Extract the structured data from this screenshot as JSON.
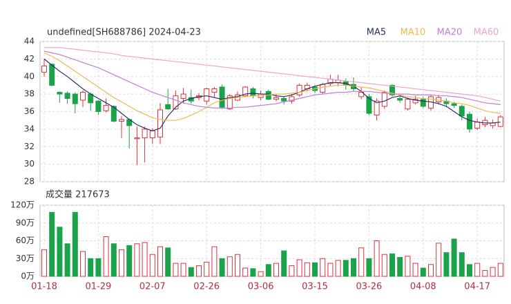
{
  "chart_data": {
    "type": "candlestick",
    "title": "undefined[SH688786] 2024-04-23",
    "categories": [
      "01-18",
      null,
      null,
      null,
      null,
      null,
      null,
      "01-29",
      null,
      null,
      null,
      null,
      null,
      null,
      "02-07",
      null,
      null,
      null,
      null,
      null,
      null,
      "02-26",
      null,
      null,
      null,
      null,
      null,
      null,
      "03-06",
      null,
      null,
      null,
      null,
      null,
      null,
      "03-15",
      null,
      null,
      null,
      null,
      null,
      null,
      "03-26",
      null,
      null,
      null,
      null,
      null,
      null,
      "04-08",
      null,
      null,
      null,
      null,
      null,
      null,
      "04-17",
      null,
      null,
      null
    ],
    "open": [
      40.5,
      41.4,
      38.2,
      38.1,
      38.0,
      37.3,
      38.0,
      37.2,
      36.1,
      36.6,
      34.9,
      35.1,
      32.9,
      33.0,
      33.0,
      33.1,
      36.8,
      36.3,
      37.5,
      37.6,
      37.6,
      37.2,
      38.2,
      38.8,
      36.3,
      37.3,
      37.8,
      38.6,
      37.6,
      38.3,
      37.4,
      37.5,
      37.2,
      37.9,
      38.6,
      38.8,
      38.2,
      39.2,
      39.3,
      39.4,
      39.1,
      37.7,
      37.7,
      35.6,
      36.6,
      39.0,
      37.5,
      36.3,
      37.0,
      37.4,
      36.4,
      37.1,
      37.2,
      36.9,
      36.6,
      35.7,
      34.1,
      34.5,
      34.4,
      34.3
    ],
    "high": [
      42.0,
      41.5,
      38.3,
      38.3,
      38.2,
      38.4,
      38.2,
      37.3,
      37.5,
      36.7,
      35.5,
      35.2,
      34.3,
      34.3,
      34.1,
      37.0,
      38.6,
      38.4,
      38.7,
      38.5,
      38.1,
      38.7,
      38.8,
      39.1,
      38.0,
      38.3,
      38.9,
      38.8,
      38.4,
      38.5,
      38.0,
      37.7,
      38.0,
      39.2,
      39.3,
      39.0,
      39.3,
      40.2,
      40.2,
      39.8,
      39.9,
      38.8,
      38.0,
      37.5,
      38.4,
      39.1,
      37.8,
      37.6,
      37.8,
      37.7,
      37.9,
      37.9,
      37.5,
      37.1,
      36.8,
      36.0,
      35.2,
      35.4,
      35.1,
      35.6
    ],
    "low": [
      40.0,
      38.9,
      37.0,
      36.9,
      35.8,
      36.5,
      36.1,
      35.6,
      35.9,
      34.8,
      33.0,
      31.8,
      29.9,
      30.2,
      32.3,
      32.3,
      36.2,
      36.2,
      36.9,
      36.9,
      37.3,
      36.8,
      37.6,
      36.3,
      36.2,
      37.2,
      37.7,
      37.5,
      37.3,
      37.3,
      37.2,
      36.8,
      36.9,
      37.7,
      38.3,
      38.1,
      38.0,
      38.9,
      38.9,
      38.5,
      38.3,
      37.4,
      35.6,
      35.0,
      36.3,
      37.7,
      37.0,
      36.1,
      36.8,
      36.4,
      36.1,
      36.8,
      36.5,
      36.4,
      35.0,
      33.6,
      33.9,
      34.2,
      34.1,
      34.2
    ],
    "close": [
      41.2,
      39.0,
      38.0,
      37.5,
      36.9,
      38.2,
      37.0,
      36.0,
      36.7,
      34.9,
      35.1,
      34.4,
      33.0,
      34.0,
      33.8,
      36.2,
      36.3,
      37.8,
      38.0,
      37.2,
      37.8,
      38.6,
      38.6,
      36.5,
      37.8,
      37.9,
      38.8,
      37.8,
      38.0,
      37.4,
      37.6,
      37.2,
      37.7,
      39.0,
      39.0,
      38.4,
      39.1,
      39.7,
      39.6,
      39.0,
      38.6,
      38.2,
      35.8,
      37.2,
      38.2,
      37.9,
      37.3,
      37.4,
      37.4,
      36.6,
      37.7,
      37.6,
      36.9,
      36.7,
      35.5,
      34.0,
      34.8,
      35.0,
      34.7,
      35.4
    ],
    "up_color": "#e0303a",
    "down_color": "#1aa34a",
    "series": [
      {
        "name": "MA5",
        "color": "#27306a",
        "values": [
          42.0,
          41.3,
          40.6,
          40.0,
          39.3,
          38.6,
          38.0,
          37.5,
          37.0,
          36.5,
          35.8,
          35.1,
          34.5,
          34.1,
          33.8,
          34.1,
          35.5,
          36.5,
          37.2,
          37.5,
          37.7,
          37.8,
          37.6,
          37.4,
          37.6,
          37.7,
          38.0,
          38.1,
          38.0,
          38.0,
          37.8,
          37.7,
          37.9,
          38.2,
          38.6,
          38.9,
          39.1,
          39.3,
          39.3,
          39.2,
          38.9,
          38.3,
          37.5,
          37.0,
          37.2,
          37.6,
          37.8,
          37.5,
          37.3,
          37.2,
          37.1,
          36.9,
          36.6,
          36.0,
          35.4,
          35.0,
          34.8,
          34.7,
          34.7,
          34.8
        ]
      },
      {
        "name": "MA10",
        "color": "#f2b84b",
        "values": [
          42.7,
          42.3,
          41.8,
          41.2,
          40.6,
          40.0,
          39.4,
          38.8,
          38.2,
          37.6,
          37.1,
          36.6,
          36.1,
          35.7,
          35.3,
          35.1,
          35.0,
          35.0,
          35.2,
          35.6,
          36.0,
          36.5,
          37.0,
          37.3,
          37.5,
          37.6,
          37.7,
          37.8,
          37.8,
          37.9,
          38.0,
          38.0,
          38.1,
          38.2,
          38.4,
          38.6,
          38.8,
          38.9,
          39.0,
          39.0,
          38.9,
          38.8,
          38.7,
          38.5,
          38.3,
          38.1,
          37.9,
          37.7,
          37.6,
          37.5,
          37.4,
          37.3,
          37.2,
          37.0,
          36.9,
          36.7,
          36.4,
          36.1,
          35.9,
          35.8
        ]
      },
      {
        "name": "MA20",
        "color": "#c07fdc",
        "values": [
          42.9,
          42.7,
          42.5,
          42.2,
          41.9,
          41.6,
          41.3,
          41.0,
          40.6,
          40.2,
          39.8,
          39.4,
          39.0,
          38.6,
          38.2,
          37.9,
          37.6,
          37.3,
          37.0,
          36.8,
          36.6,
          36.5,
          36.4,
          36.4,
          36.4,
          36.5,
          36.5,
          36.6,
          36.7,
          36.8,
          36.9,
          37.1,
          37.3,
          37.5,
          37.7,
          37.9,
          38.0,
          38.1,
          38.2,
          38.2,
          38.3,
          38.3,
          38.3,
          38.2,
          38.1,
          38.0,
          38.0,
          38.0,
          37.9,
          37.9,
          37.9,
          37.8,
          37.8,
          37.7,
          37.6,
          37.4,
          37.2,
          37.0,
          36.9,
          36.8
        ]
      },
      {
        "name": "MA60",
        "color": "#f2a3c9",
        "values": [
          43.3,
          43.3,
          43.3,
          43.2,
          43.1,
          43.0,
          42.9,
          42.8,
          42.7,
          42.6,
          42.4,
          42.3,
          42.2,
          42.1,
          42.0,
          41.9,
          41.8,
          41.7,
          41.6,
          41.5,
          41.4,
          41.3,
          41.2,
          41.1,
          41.0,
          40.9,
          40.8,
          40.7,
          40.6,
          40.5,
          40.4,
          40.3,
          40.2,
          40.1,
          40.0,
          39.9,
          39.8,
          39.7,
          39.6,
          39.5,
          39.4,
          39.3,
          39.2,
          39.1,
          39.0,
          38.9,
          38.8,
          38.7,
          38.6,
          38.5,
          38.4,
          38.3,
          38.2,
          38.1,
          38.0,
          37.9,
          37.8,
          37.6,
          37.4,
          37.2
        ]
      }
    ],
    "ylim": [
      28,
      44
    ],
    "yticks": [
      28,
      30,
      32,
      34,
      36,
      38,
      40,
      42,
      44
    ],
    "grid": true,
    "volume": {
      "label": "成交量 217673",
      "values": [
        45,
        108,
        83,
        55,
        108,
        42,
        30,
        30,
        67,
        55,
        45,
        52,
        55,
        57,
        37,
        50,
        48,
        22,
        22,
        15,
        18,
        24,
        50,
        30,
        33,
        37,
        14,
        13,
        8,
        20,
        22,
        43,
        18,
        28,
        23,
        23,
        30,
        22,
        27,
        27,
        30,
        48,
        30,
        60,
        37,
        38,
        32,
        34,
        22,
        14,
        20,
        56,
        40,
        63,
        40,
        20,
        22,
        10,
        15,
        22
      ],
      "ylim": [
        0,
        120
      ],
      "yticks": [
        {
          "value": 0,
          "label": "0万"
        },
        {
          "value": 30,
          "label": "30万"
        },
        {
          "value": 60,
          "label": "60万"
        },
        {
          "value": 90,
          "label": "90万"
        },
        {
          "value": 120,
          "label": "120万"
        }
      ]
    }
  }
}
